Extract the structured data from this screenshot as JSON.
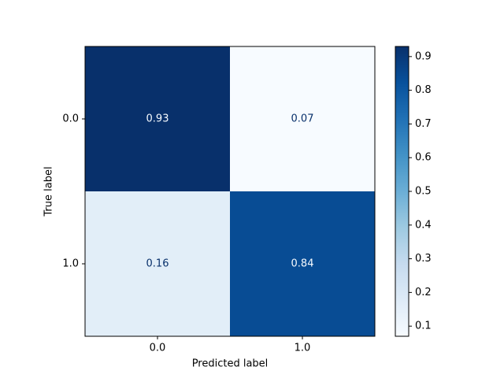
{
  "chart_data": {
    "type": "heatmap",
    "xlabel": "Predicted label",
    "ylabel": "True label",
    "x_categories": [
      "0.0",
      "1.0"
    ],
    "y_categories": [
      "0.0",
      "1.0"
    ],
    "values": [
      [
        0.93,
        0.07
      ],
      [
        0.16,
        0.84
      ]
    ],
    "colormap": "Blues",
    "clim": [
      0.07,
      0.93
    ],
    "cticks": [
      0.1,
      0.2,
      0.3,
      0.4,
      0.5,
      0.6,
      0.7,
      0.8,
      0.9
    ]
  }
}
